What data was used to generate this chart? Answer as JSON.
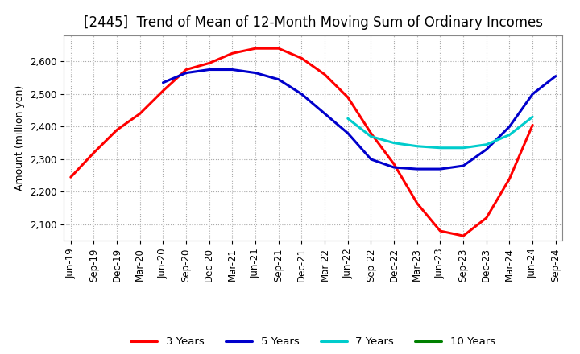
{
  "title": "[2445]  Trend of Mean of 12-Month Moving Sum of Ordinary Incomes",
  "ylabel": "Amount (million yen)",
  "ylim": [
    2050,
    2680
  ],
  "yticks": [
    2100,
    2200,
    2300,
    2400,
    2500,
    2600
  ],
  "x_labels": [
    "Jun-19",
    "Sep-19",
    "Dec-19",
    "Mar-20",
    "Jun-20",
    "Sep-20",
    "Dec-20",
    "Mar-21",
    "Jun-21",
    "Sep-21",
    "Dec-21",
    "Mar-22",
    "Jun-22",
    "Sep-22",
    "Dec-22",
    "Mar-23",
    "Jun-23",
    "Sep-23",
    "Dec-23",
    "Mar-24",
    "Jun-24",
    "Sep-24"
  ],
  "series": {
    "3 Years": {
      "color": "#ff0000",
      "values": [
        2245,
        2320,
        2390,
        2440,
        2510,
        2575,
        2595,
        2625,
        2640,
        2640,
        2610,
        2560,
        2490,
        2380,
        2285,
        2165,
        2080,
        2065,
        2120,
        2240,
        2405,
        null
      ]
    },
    "5 Years": {
      "color": "#0000cc",
      "values": [
        null,
        null,
        null,
        null,
        2535,
        2565,
        2575,
        2575,
        2565,
        2545,
        2500,
        2440,
        2380,
        2300,
        2275,
        2270,
        2270,
        2280,
        2330,
        2400,
        2500,
        2555
      ]
    },
    "7 Years": {
      "color": "#00cccc",
      "values": [
        null,
        null,
        null,
        null,
        null,
        null,
        null,
        null,
        null,
        null,
        null,
        null,
        2425,
        2370,
        2350,
        2340,
        2335,
        2335,
        2345,
        2375,
        2430,
        null
      ]
    },
    "10 Years": {
      "color": "#008000",
      "values": [
        null,
        null,
        null,
        null,
        null,
        null,
        null,
        null,
        null,
        null,
        null,
        null,
        null,
        null,
        null,
        null,
        null,
        null,
        null,
        null,
        null,
        null
      ]
    }
  },
  "legend_labels": [
    "3 Years",
    "5 Years",
    "7 Years",
    "10 Years"
  ],
  "legend_colors": [
    "#ff0000",
    "#0000cc",
    "#00cccc",
    "#008000"
  ],
  "background_color": "#ffffff",
  "title_fontsize": 12,
  "axis_fontsize": 9,
  "tick_fontsize": 8.5
}
